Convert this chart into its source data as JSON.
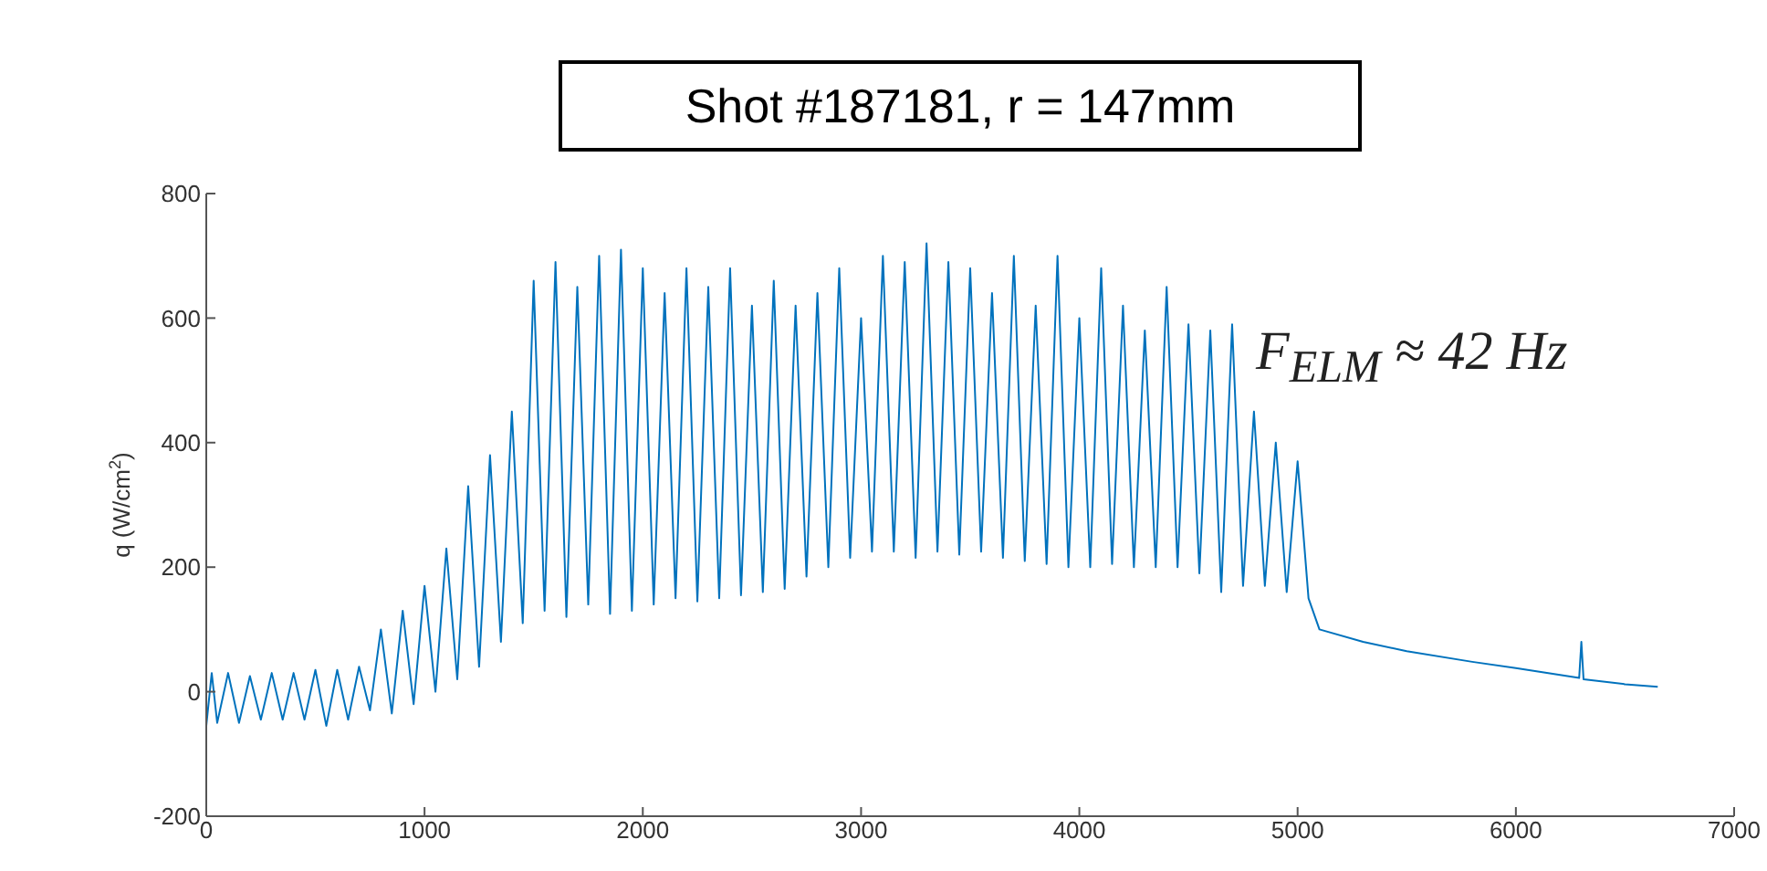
{
  "chart_data": {
    "type": "line",
    "title": "Shot #187181, r = 147mm",
    "ylabel": "q  (W/cm$^{2}$)",
    "annotations": [
      "F$_{ELM}$ ≈ 42 Hz"
    ],
    "xlim": [
      0,
      7000
    ],
    "xticks": [
      0,
      1000,
      2000,
      3000,
      4000,
      5000,
      6000,
      7000
    ],
    "ylim": [
      -200,
      800
    ],
    "yticks": [
      -200,
      0,
      200,
      400,
      600,
      800
    ],
    "marker": "none",
    "line_style": "solid",
    "series": [
      {
        "color": "#0072bd",
        "x": [
          0,
          25,
          50,
          100,
          150,
          200,
          250,
          300,
          350,
          400,
          450,
          500,
          550,
          600,
          650,
          700,
          750,
          800,
          850,
          900,
          950,
          1000,
          1050,
          1100,
          1150,
          1200,
          1250,
          1300,
          1350,
          1400,
          1450,
          1500,
          1550,
          1600,
          1650,
          1700,
          1750,
          1800,
          1850,
          1900,
          1950,
          2000,
          2050,
          2100,
          2150,
          2200,
          2250,
          2300,
          2350,
          2400,
          2450,
          2500,
          2550,
          2600,
          2650,
          2700,
          2750,
          2800,
          2850,
          2900,
          2950,
          3000,
          3050,
          3100,
          3150,
          3200,
          3250,
          3300,
          3350,
          3400,
          3450,
          3500,
          3550,
          3600,
          3650,
          3700,
          3750,
          3800,
          3850,
          3900,
          3950,
          4000,
          4050,
          4100,
          4150,
          4200,
          4250,
          4300,
          4350,
          4400,
          4450,
          4500,
          4550,
          4600,
          4650,
          4700,
          4750,
          4800,
          4850,
          4900,
          4950,
          5000,
          5050,
          5100,
          5300,
          5500,
          5800,
          6000,
          6290,
          6300,
          6310,
          6500,
          6650
        ],
        "values": [
          -55,
          30,
          -50,
          30,
          -50,
          25,
          -45,
          30,
          -45,
          30,
          -45,
          35,
          -55,
          35,
          -45,
          40,
          -30,
          100,
          -35,
          130,
          -20,
          170,
          0,
          230,
          20,
          330,
          40,
          380,
          80,
          450,
          110,
          660,
          130,
          690,
          120,
          650,
          140,
          700,
          125,
          710,
          130,
          680,
          140,
          640,
          150,
          680,
          145,
          650,
          150,
          680,
          155,
          620,
          160,
          660,
          165,
          620,
          185,
          640,
          200,
          680,
          215,
          600,
          225,
          700,
          225,
          690,
          215,
          720,
          225,
          690,
          220,
          680,
          225,
          640,
          215,
          700,
          210,
          620,
          205,
          700,
          200,
          600,
          200,
          680,
          205,
          620,
          200,
          580,
          200,
          650,
          200,
          590,
          190,
          580,
          160,
          590,
          170,
          450,
          170,
          400,
          160,
          370,
          150,
          100,
          80,
          65,
          48,
          38,
          22,
          80,
          20,
          12,
          8
        ]
      }
    ]
  }
}
